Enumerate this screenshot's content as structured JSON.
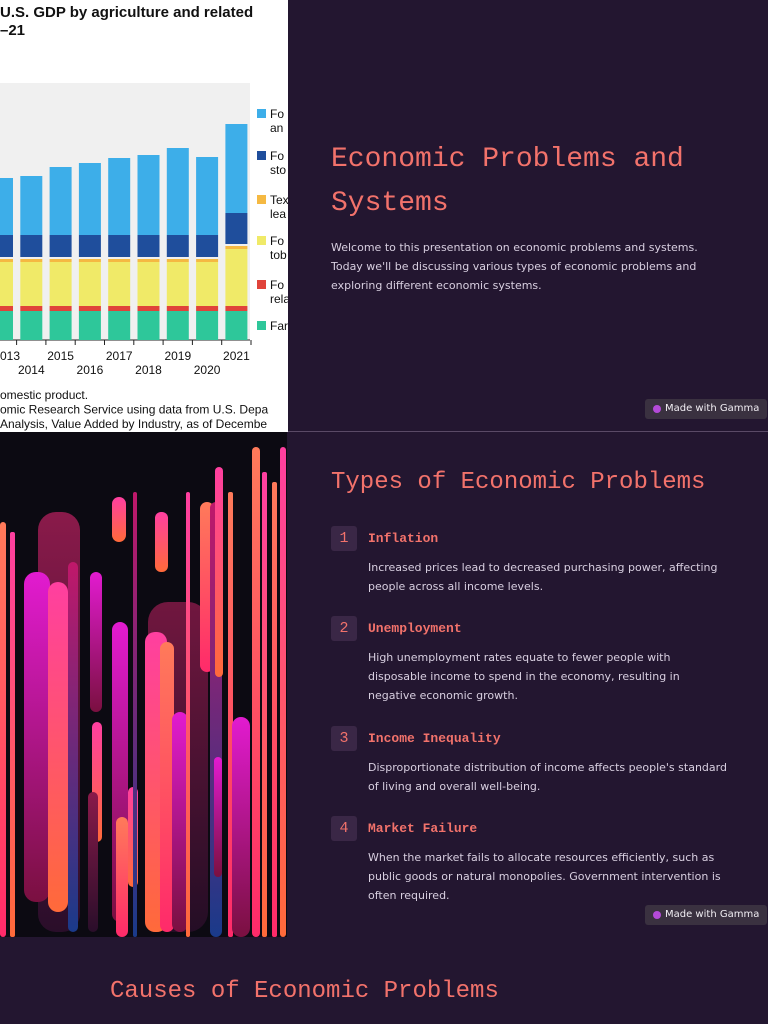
{
  "chart_image": {
    "title_lines": [
      "U.S. GDP by agriculture and related",
      "–21"
    ],
    "legend": [
      [
        "Fo",
        "an"
      ],
      [
        "Fo",
        "sto"
      ],
      [
        "Tex",
        "lea"
      ],
      [
        "Fo",
        "tob"
      ],
      [
        "Fo",
        "rela"
      ],
      [
        "Far"
      ]
    ],
    "x_labels": [
      "013",
      "2014",
      "2015",
      "2016",
      "2017",
      "2018",
      "2019",
      "2020",
      "2021"
    ],
    "notes": [
      "omestic product.",
      "omic Research Service using data from U.S. Depa",
      "Analysis, Value Added by Industry, as of Decembe"
    ]
  },
  "slides": [
    {
      "title": "Economic Problems and Systems",
      "body": "Welcome to this presentation on economic problems and systems. Today we'll be discussing various types of economic problems and exploring different economic systems.",
      "badge": "Made with Gamma"
    },
    {
      "title": "Types of Economic Problems",
      "items": [
        {
          "number": 1,
          "label": "Inflation",
          "description": "Increased prices lead to decreased purchasing power, affecting people across all income levels."
        },
        {
          "number": 2,
          "label": "Unemployment",
          "description": "High unemployment rates equate to fewer people with disposable income to spend in the economy, resulting in negative economic growth."
        },
        {
          "number": 3,
          "label": "Income Inequality",
          "description": "Disproportionate distribution of income affects people's standard of living and overall well-being."
        },
        {
          "number": 4,
          "label": "Market Failure",
          "description": "When the market fails to allocate resources efficiently, such as public goods or natural monopolies. Government intervention is often required."
        }
      ],
      "badge": "Made with Gamma"
    },
    {
      "title": "Causes of Economic Problems"
    }
  ]
}
